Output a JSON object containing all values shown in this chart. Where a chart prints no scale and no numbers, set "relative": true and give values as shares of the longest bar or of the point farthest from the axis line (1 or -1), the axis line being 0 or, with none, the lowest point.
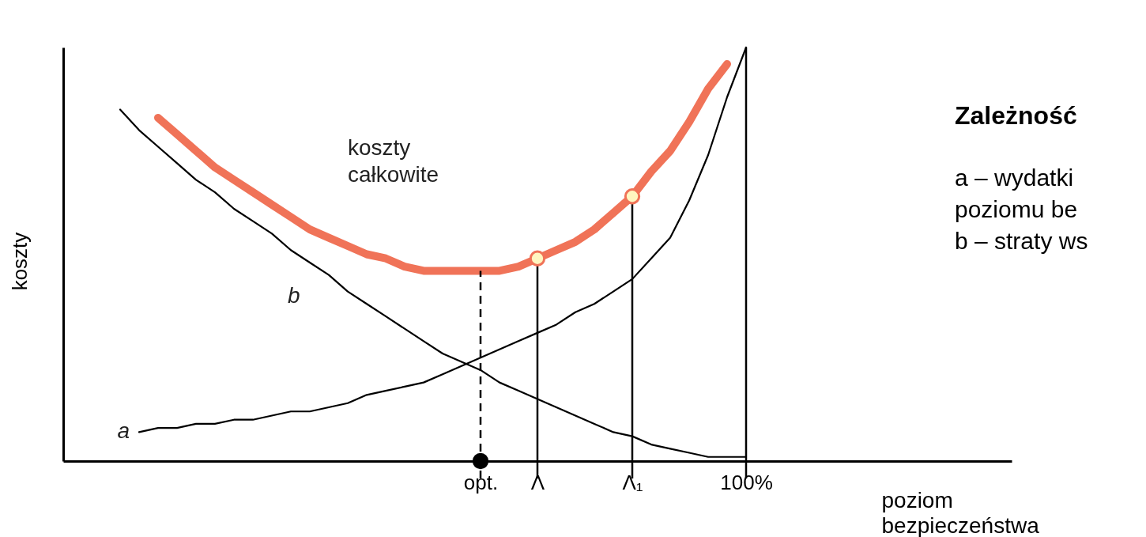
{
  "chart_data": {
    "type": "line",
    "relative": true,
    "title": "Zależność",
    "xlabel": "poziom bezpieczeństwa",
    "ylabel": "koszty",
    "grid": false,
    "legend": false,
    "categories": [
      null,
      null,
      null,
      null,
      null,
      null,
      null,
      null,
      null,
      null,
      null,
      null,
      null,
      null,
      null,
      null,
      null,
      null,
      null,
      null,
      null,
      null,
      "opt.",
      null,
      null,
      "Λ",
      null,
      null,
      null,
      null,
      "Λ₁",
      null,
      null,
      null,
      null,
      null,
      "100%",
      null,
      null,
      null,
      null,
      null,
      null,
      null,
      null,
      null,
      null,
      null,
      null,
      null,
      null
    ],
    "series": [
      {
        "name": "koszty całkowite",
        "color": "#f07358",
        "values": [
          null,
          null,
          null,
          null,
          null,
          0.83,
          0.79,
          0.75,
          0.71,
          0.68,
          0.65,
          0.62,
          0.59,
          0.56,
          0.54,
          0.52,
          0.5,
          0.49,
          0.47,
          0.46,
          0.46,
          0.46,
          0.46,
          0.46,
          0.47,
          0.49,
          0.51,
          0.53,
          0.56,
          0.6,
          0.64,
          0.7,
          0.75,
          0.82,
          0.9,
          0.96,
          null,
          null,
          null,
          null,
          null,
          null,
          null,
          null,
          null,
          null,
          null,
          null,
          null,
          null,
          null
        ]
      },
      {
        "name": "a",
        "color": "#000000",
        "values": [
          null,
          null,
          null,
          null,
          0.07,
          0.08,
          0.08,
          0.09,
          0.09,
          0.1,
          0.1,
          0.11,
          0.12,
          0.12,
          0.13,
          0.14,
          0.16,
          0.17,
          0.18,
          0.19,
          0.21,
          0.23,
          0.25,
          0.27,
          0.29,
          0.31,
          0.33,
          0.36,
          0.38,
          0.41,
          0.44,
          0.49,
          0.54,
          0.63,
          0.74,
          0.88,
          1.0,
          null,
          null,
          null,
          null,
          null,
          null,
          null,
          null,
          null,
          null,
          null,
          null,
          null,
          null
        ]
      },
      {
        "name": "b",
        "color": "#000000",
        "values": [
          null,
          null,
          null,
          0.85,
          0.8,
          0.76,
          0.72,
          0.68,
          0.65,
          0.61,
          0.58,
          0.55,
          0.51,
          0.48,
          0.45,
          0.41,
          0.38,
          0.35,
          0.32,
          0.29,
          0.26,
          0.24,
          0.22,
          0.19,
          0.17,
          0.15,
          0.13,
          0.11,
          0.09,
          0.07,
          0.06,
          0.04,
          0.03,
          0.02,
          0.01,
          0.01,
          0.01,
          null,
          null,
          null,
          null,
          null,
          null,
          null,
          null,
          null,
          null,
          null,
          null,
          null,
          null
        ]
      },
      {
        "type": "scatter",
        "x": [
          "Λ",
          "Λ₁"
        ],
        "values": [
          0.49,
          0.64
        ],
        "color": "#fff6c0",
        "marker": "circle"
      },
      {
        "type": "scatter",
        "x": [
          "opt."
        ],
        "values": [
          0
        ],
        "color": "#000000",
        "marker": "circle"
      }
    ],
    "ref_lines": [
      {
        "axis": "x",
        "value": "opt.",
        "line_style": "dashed"
      },
      {
        "axis": "x",
        "value": "Λ"
      },
      {
        "axis": "x",
        "value": "Λ₁"
      },
      {
        "axis": "x",
        "value": "100%"
      }
    ],
    "annotations": [
      "a – wydatki",
      "poziomu be",
      "b – straty ws"
    ]
  }
}
